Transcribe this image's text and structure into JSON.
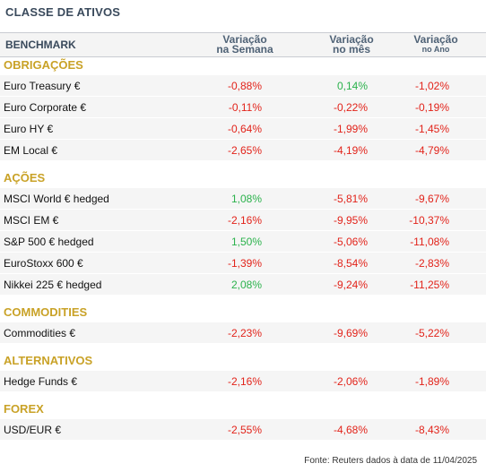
{
  "title": "CLASSE DE ATIVOS",
  "header": {
    "benchmark": "BENCHMARK",
    "col1_l1": "Variação",
    "col1_l2": "na Semana",
    "col2_l1": "Variação",
    "col2_l2": "no mês",
    "col3_l1": "Variação",
    "col3_l2": "no Ano"
  },
  "sections": [
    {
      "label": "OBRIGAÇÕES",
      "rows": [
        {
          "name": "Euro Treasury €",
          "week": "-0,88%",
          "month": "0,14%",
          "year": "-1,02%"
        },
        {
          "name": "Euro Corporate €",
          "week": "-0,11%",
          "month": "-0,22%",
          "year": "-0,19%"
        },
        {
          "name": "Euro HY €",
          "week": "-0,64%",
          "month": "-1,99%",
          "year": "-1,45%"
        },
        {
          "name": "EM Local €",
          "week": "-2,65%",
          "month": "-4,19%",
          "year": "-4,79%"
        }
      ]
    },
    {
      "label": "AÇÕES",
      "rows": [
        {
          "name": "MSCI World € hedged",
          "week": "1,08%",
          "month": "-5,81%",
          "year": "-9,67%"
        },
        {
          "name": "MSCI EM €",
          "week": "-2,16%",
          "month": "-9,95%",
          "year": "-10,37%"
        },
        {
          "name": "S&P 500 € hedged",
          "week": "1,50%",
          "month": "-5,06%",
          "year": "-11,08%"
        },
        {
          "name": "EuroStoxx 600 €",
          "week": "-1,39%",
          "month": "-8,54%",
          "year": "-2,83%"
        },
        {
          "name": "Nikkei 225 € hedged",
          "week": "2,08%",
          "month": "-9,24%",
          "year": "-11,25%"
        }
      ]
    },
    {
      "label": "COMMODITIES",
      "rows": [
        {
          "name": "Commodities €",
          "week": "-2,23%",
          "month": "-9,69%",
          "year": "-5,22%"
        }
      ]
    },
    {
      "label": "ALTERNATIVOS",
      "rows": [
        {
          "name": "Hedge Funds €",
          "week": "-2,16%",
          "month": "-2,06%",
          "year": "-1,89%"
        }
      ]
    },
    {
      "label": "FOREX",
      "rows": [
        {
          "name": "USD/EUR €",
          "week": "-2,55%",
          "month": "-4,68%",
          "year": "-8,43%"
        }
      ]
    }
  ],
  "footer": "Fonte: Reuters dados à data de 11/04/2025",
  "colors": {
    "negative": "#e2231a",
    "positive": "#2bb24c",
    "section": "#c9a227"
  }
}
